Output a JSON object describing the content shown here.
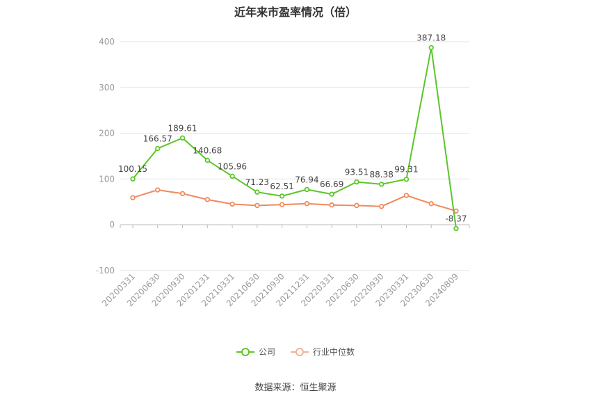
{
  "chart_data": {
    "type": "line",
    "title": "近年来市盈率情况（倍）",
    "categories": [
      "20200331",
      "20200630",
      "20200930",
      "20201231",
      "20210331",
      "20210630",
      "20210930",
      "20211231",
      "20220331",
      "20220630",
      "20220930",
      "20230331",
      "20230630",
      "20240809"
    ],
    "series": [
      {
        "name": "公司",
        "color": "#5cc529",
        "values": [
          100.15,
          166.57,
          189.61,
          140.68,
          105.96,
          71.23,
          62.51,
          76.94,
          66.69,
          93.51,
          88.38,
          99.31,
          387.18,
          -8.37
        ],
        "labels": [
          "100.15",
          "166.57",
          "189.61",
          "140.68",
          "105.96",
          "71.23",
          "62.51",
          "76.94",
          "66.69",
          "93.51",
          "88.38",
          "99.31",
          "387.18",
          "-8.37"
        ]
      },
      {
        "name": "行业中位数",
        "color": "#f08a5d",
        "values": [
          59,
          76,
          68,
          55,
          45,
          42,
          44,
          46,
          43,
          42,
          40,
          64,
          46,
          30
        ]
      }
    ],
    "ylim": [
      -100,
      400
    ],
    "yticks": [
      400,
      300,
      200,
      100,
      0,
      -100
    ],
    "grid": true,
    "legend_position": "bottom"
  },
  "legend": {
    "company": "公司",
    "industry": "行业中位数"
  },
  "source": "数据来源：恒生聚源"
}
